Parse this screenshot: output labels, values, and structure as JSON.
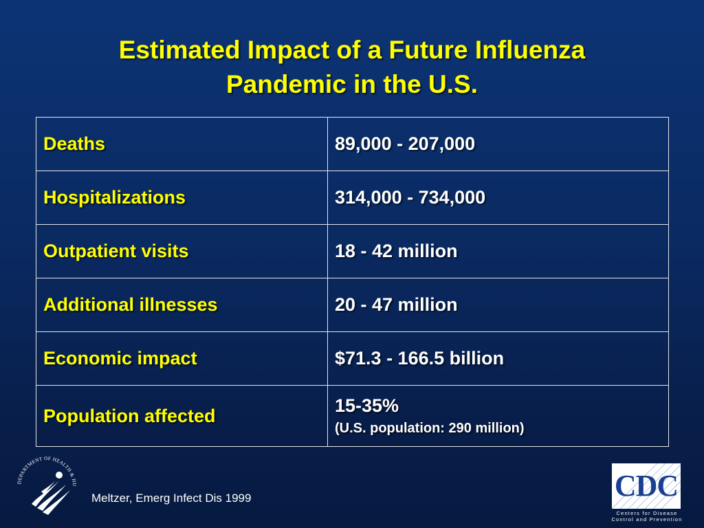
{
  "slide": {
    "title_line1": "Estimated Impact of a Future Influenza",
    "title_line2": "Pandemic in the U.S.",
    "rows": [
      {
        "label": "Deaths",
        "value": "89,000 - 207,000"
      },
      {
        "label": "Hospitalizations",
        "value": "314,000 - 734,000"
      },
      {
        "label": "Outpatient visits",
        "value": "18 - 42 million"
      },
      {
        "label": "Additional illnesses",
        "value": "20 - 47 million"
      },
      {
        "label": "Economic impact",
        "value": "$71.3 - 166.5 billion"
      },
      {
        "label": "Population affected",
        "value": "15-35%",
        "note": "(U.S. population:  290 million)"
      }
    ],
    "citation": "Meltzer, Emerg Infect Dis 1999"
  },
  "logos": {
    "hhs_seal_text": "DEPARTMENT OF HEALTH & HUMAN SERVICES · USA",
    "cdc_letters": "CDC",
    "cdc_sub_line1": "Centers for Disease",
    "cdc_sub_line2": "Control and Prevention"
  },
  "colors": {
    "background": "#0a2a62",
    "title_text": "#ffff00",
    "label_text": "#ffff00",
    "value_text": "#ffffff",
    "cdc_blue": "#1a3f8f"
  }
}
